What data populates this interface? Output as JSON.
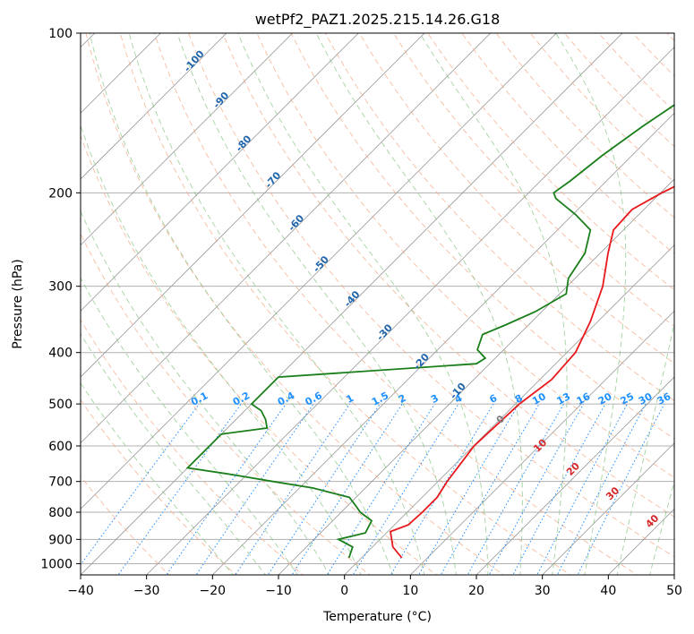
{
  "chart_data": {
    "type": "line",
    "title": "wetPf2_PAZ1.2025.215.14.26.G18",
    "xlabel": "Temperature (°C)",
    "ylabel": "Pressure (hPa)",
    "xlim": [
      -40,
      50
    ],
    "ylim": [
      1050,
      100
    ],
    "y_scale": "log",
    "grid": true,
    "legend": "none",
    "x_ticks": [
      -40,
      -30,
      -20,
      -10,
      0,
      10,
      20,
      30,
      40,
      50
    ],
    "y_ticks": [
      100,
      200,
      300,
      400,
      500,
      600,
      700,
      800,
      900,
      1000
    ],
    "colors": {
      "temperature": "#e8191c",
      "dewpoint": "#1a7f1a",
      "isotherm": "#999999",
      "dry_adiabat": "#f4a582",
      "moist_adiabat": "#7fbf7b",
      "mixing_ratio": "#1f8fff",
      "mixing_label": "#1e90ff",
      "isotherm_label": "#2166ac",
      "moist_label": "#d62728"
    },
    "series": [
      {
        "key": "temperature",
        "p": [
          975,
          930,
          870,
          845,
          800,
          750,
          700,
          600,
          500,
          450,
          400,
          350,
          300,
          260,
          235,
          215,
          200,
          170,
          150,
          130,
          115,
          100
        ],
        "t": [
          6.1,
          3.1,
          0.4,
          2.1,
          2.3,
          2.3,
          1.4,
          0.1,
          0.6,
          1.8,
          1.3,
          -1.1,
          -4.6,
          -8.8,
          -11.5,
          -11.8,
          -9.8,
          -3.9,
          0.8,
          7.4,
          13.6,
          19.3
        ]
      },
      {
        "key": "dewpoint",
        "p": [
          975,
          930,
          900,
          875,
          830,
          800,
          780,
          750,
          720,
          700,
          680,
          660,
          570,
          555,
          535,
          515,
          500,
          445,
          420,
          410,
          395,
          370,
          355,
          335,
          310,
          290,
          260,
          235,
          220,
          205,
          200,
          190,
          170,
          150,
          130,
          115,
          100
        ],
        "t": [
          -1.9,
          -3.0,
          -6.3,
          -3.2,
          -4.1,
          -7.1,
          -8.6,
          -11.0,
          -18.0,
          -25.0,
          -32.0,
          -40.0,
          -40.0,
          -34.0,
          -35.5,
          -37.5,
          -40.0,
          -40.0,
          -12.0,
          -11.5,
          -14.0,
          -15.5,
          -13.5,
          -11.0,
          -9.0,
          -11.0,
          -12.3,
          -15.0,
          -19.5,
          -25.0,
          -26.2,
          -25.5,
          -24.5,
          -22.8,
          -20.4,
          -18.2,
          -14.6
        ]
      }
    ],
    "isotherm_labels": [
      -100,
      -90,
      -80,
      -70,
      -60,
      -50,
      -40,
      -30,
      -20,
      -10
    ],
    "mixing_ratio_labels": [
      "0.1",
      "0.2",
      "0.4",
      "0.6",
      "1",
      "1.5",
      "2",
      "3",
      "4",
      "6",
      "8",
      "10",
      "13",
      "16",
      "20",
      "25",
      "30",
      "36"
    ],
    "moist_adiabat_labels": [
      "0",
      "10",
      "20",
      "30",
      "40"
    ]
  }
}
